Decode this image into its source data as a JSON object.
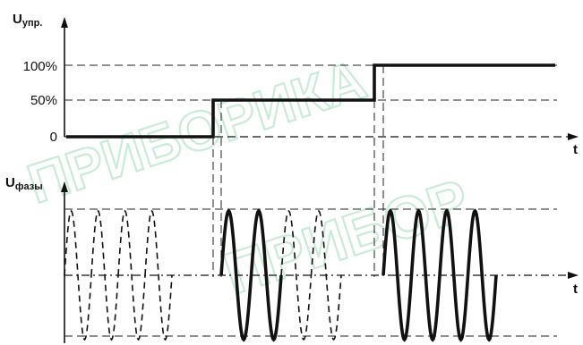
{
  "control_chart": {
    "y_axis_title": "U",
    "y_axis_sub": "упр.",
    "x_axis_label": "t",
    "levels": [
      "100%",
      "50%",
      "0"
    ],
    "level_values": [
      100,
      50,
      0
    ],
    "steps": [
      {
        "t_start": 0,
        "t_end": 1,
        "level": 0
      },
      {
        "t_start": 1,
        "t_end": 2,
        "level": 50
      },
      {
        "t_start": 2,
        "t_end": 3,
        "level": 100
      }
    ]
  },
  "phase_chart": {
    "y_axis_title": "U",
    "y_axis_sub": "фазы",
    "x_axis_label": "t",
    "segments": [
      {
        "conducting_periods": 0,
        "total_periods": 4
      },
      {
        "conducting_periods": 2,
        "total_periods": 4
      },
      {
        "conducting_periods": 4,
        "total_periods": 4
      }
    ]
  },
  "watermark": {
    "text_1": "ПРИБОРИКА",
    "text_2": "ПРИБОР"
  },
  "colors": {
    "line": "#111111",
    "dashed": "#222222",
    "watermark": "#c9ecd6"
  }
}
